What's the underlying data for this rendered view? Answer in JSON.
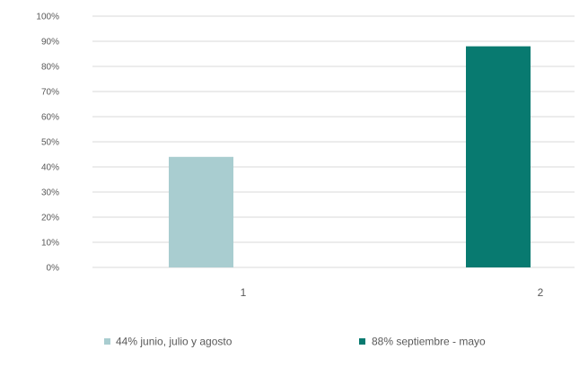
{
  "chart_data": {
    "type": "bar",
    "categories": [
      "1",
      "2"
    ],
    "values": [
      44,
      88
    ],
    "colors": [
      "#a9cdd0",
      "#087a70"
    ],
    "legend": [
      {
        "label": "44% junio, julio y agosto",
        "color": "#a9cdd0"
      },
      {
        "label": "88% septiembre - mayo",
        "color": "#087a70"
      }
    ],
    "y_ticks": [
      "0%",
      "10%",
      "20%",
      "30%",
      "40%",
      "50%",
      "60%",
      "70%",
      "80%",
      "90%",
      "100%"
    ],
    "ylim": [
      0,
      100
    ],
    "grid": true,
    "legend_position": "bottom"
  }
}
